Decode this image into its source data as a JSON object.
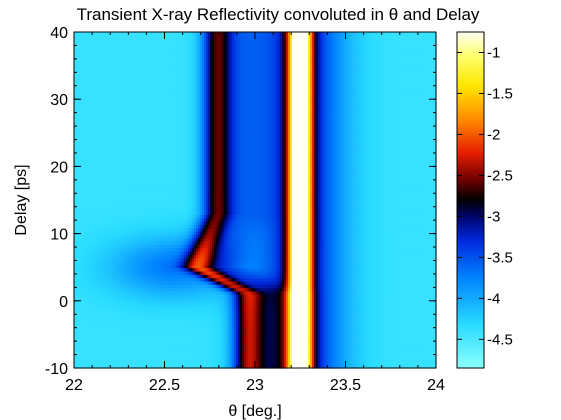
{
  "chart_data": {
    "type": "heatmap",
    "title": "Transient X-ray Reflectivity convoluted in θ and Delay",
    "xlabel": "θ [deg.]",
    "ylabel": "Delay [ps]",
    "xlim": [
      22,
      24
    ],
    "ylim": [
      -10,
      40
    ],
    "x_ticks": [
      "22",
      "22.5",
      "23",
      "23.5",
      "24"
    ],
    "y_ticks": [
      "-10",
      "0",
      "10",
      "20",
      "30",
      "40"
    ],
    "colorbar": {
      "range": [
        -4.85,
        -0.75
      ],
      "ticks": [
        "-1",
        "-1.5",
        "-2",
        "-2.5",
        "-3",
        "-3.5",
        "-4",
        "-4.5"
      ],
      "colormap": "cyan-blue-black-red-yellow-white",
      "scale": "log10 reflectivity"
    },
    "features": {
      "main_peak_theta": 23.25,
      "main_peak_value": -0.8,
      "background_value": -4.4,
      "side_peak": [
        {
          "delay": -10,
          "theta": 22.96,
          "value": -2.9
        },
        {
          "delay": 1,
          "theta": 22.96,
          "value": -2.9
        },
        {
          "delay": 5,
          "theta": 22.68,
          "value": -2.85
        },
        {
          "delay": 8,
          "theta": 22.72,
          "value": -2.85
        },
        {
          "delay": 13,
          "theta": 22.79,
          "value": -2.9
        },
        {
          "delay": 40,
          "theta": 22.79,
          "value": -2.9
        }
      ]
    }
  }
}
